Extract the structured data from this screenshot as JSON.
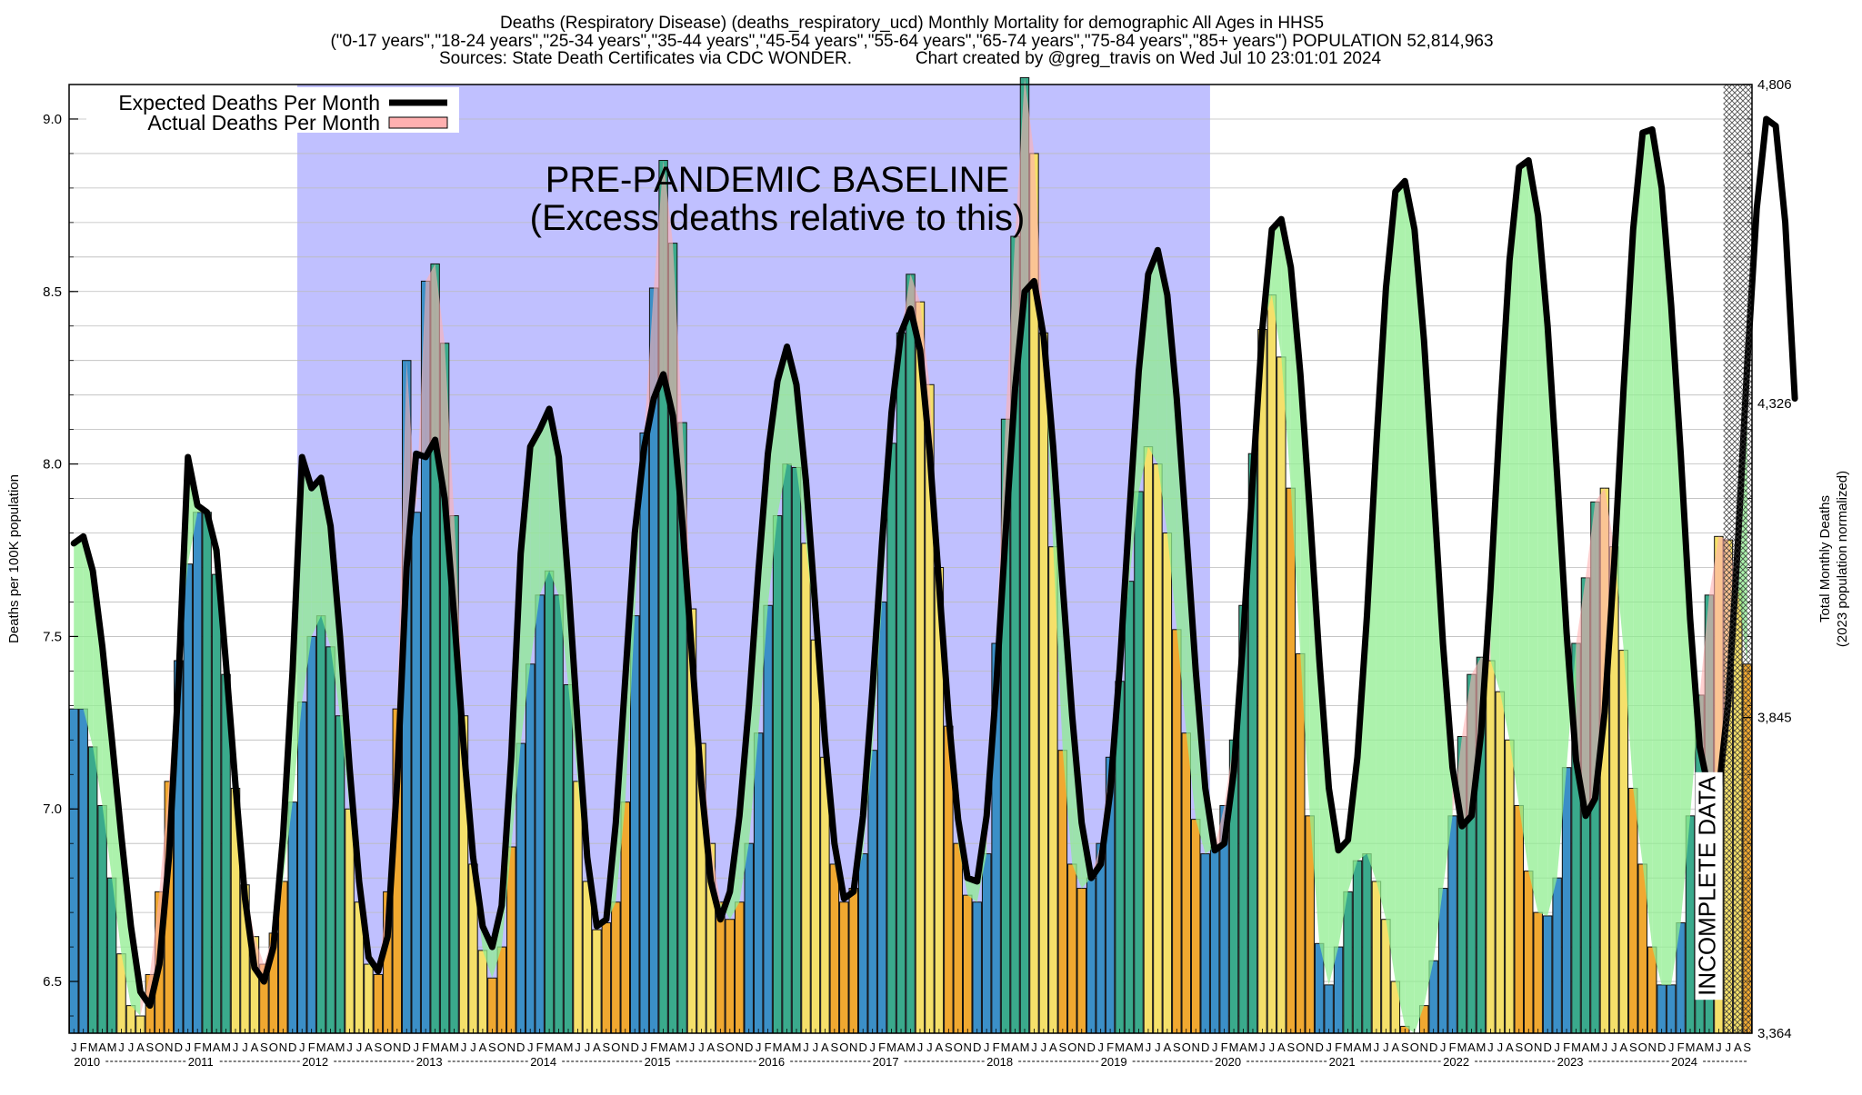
{
  "chart_data": {
    "type": "bar",
    "title_lines": [
      "Deaths (Respiratory Disease) (deaths_respiratory_ucd) Monthly Mortality for demographic All Ages in HHS5",
      "(\"0-17 years\",\"18-24 years\",\"25-34 years\",\"35-44 years\",\"45-54 years\",\"55-64 years\",\"65-74 years\",\"75-84 years\",\"85+ years\") POPULATION 52,814,963",
      "Sources: State Death Certificates via CDC WONDER.",
      "Chart created by @greg_travis on Wed Jul 10 23:01:01 2024"
    ],
    "ylabel": "Deaths per 100K population",
    "y2label_lines": [
      "Total Monthly Deaths",
      "(2023 population normalized)"
    ],
    "ylim": [
      6.35,
      9.1
    ],
    "yticks": [
      "6.5",
      "7.0",
      "7.5",
      "8.0",
      "8.5",
      "9.0"
    ],
    "y2ticks": [
      "3,364",
      "3,845",
      "4,326",
      "4,806"
    ],
    "start_year": 2010,
    "month_letters": [
      "J",
      "F",
      "M",
      "A",
      "M",
      "J",
      "J",
      "A",
      "S",
      "O",
      "N",
      "D"
    ],
    "years": [
      "2010",
      "2011",
      "2012",
      "2013",
      "2014",
      "2015",
      "2016",
      "2017",
      "2018",
      "2019",
      "2020",
      "2021",
      "2022",
      "2023",
      "2024"
    ],
    "legend": [
      "Expected Deaths Per Month",
      "Actual Deaths Per Month"
    ],
    "baseline_label_lines": [
      "PRE-PANDEMIC BASELINE",
      "(Excess deaths relative to this)"
    ],
    "baseline_period": [
      "2012-01",
      "2019-12"
    ],
    "incomplete_label": "INCOMPLETE DATA",
    "incomplete_months": 3,
    "colors": {
      "baseline_bg": "#c0c0ff",
      "expected_line": "#000000",
      "actual_fill": "#ffb0b0",
      "excess_fill": "#90ee90",
      "bar_winter": "#3b8fc7",
      "bar_spring": "#3aaa8c",
      "bar_summer": "#f5e06a",
      "bar_fall": "#f0a830"
    },
    "actual": [
      7.29,
      7.29,
      7.18,
      7.01,
      6.8,
      6.58,
      6.43,
      6.4,
      6.52,
      6.76,
      7.08,
      7.43,
      7.71,
      7.86,
      7.86,
      7.68,
      7.39,
      7.06,
      6.78,
      6.63,
      6.55,
      6.64,
      6.79,
      7.02,
      7.31,
      7.5,
      7.56,
      7.47,
      7.27,
      7.0,
      6.73,
      6.55,
      6.52,
      6.76,
      7.29,
      8.3,
      7.86,
      8.53,
      8.58,
      8.35,
      7.85,
      7.27,
      6.84,
      6.59,
      6.51,
      6.6,
      6.89,
      7.19,
      7.42,
      7.62,
      7.69,
      7.62,
      7.36,
      7.08,
      6.79,
      6.65,
      6.67,
      6.73,
      7.02,
      7.56,
      8.09,
      8.51,
      8.88,
      8.64,
      8.12,
      7.58,
      7.19,
      6.9,
      6.73,
      6.68,
      6.73,
      6.9,
      7.22,
      7.59,
      7.85,
      8.0,
      7.99,
      7.77,
      7.49,
      7.15,
      6.84,
      6.73,
      6.77,
      6.87,
      7.17,
      7.6,
      8.06,
      8.38,
      8.55,
      8.47,
      8.23,
      7.7,
      7.24,
      6.9,
      6.75,
      6.73,
      6.87,
      7.48,
      8.13,
      8.66,
      9.12,
      8.9,
      8.38,
      7.76,
      7.17,
      6.84,
      6.77,
      6.8,
      6.9,
      7.15,
      7.37,
      7.66,
      7.92,
      8.05,
      8.0,
      7.8,
      7.52,
      7.22,
      6.97,
      6.87,
      6.89,
      7.01,
      7.2,
      7.59,
      8.03,
      8.39,
      8.49,
      8.31,
      7.93,
      7.45,
      6.98,
      6.61,
      6.49,
      6.6,
      6.76,
      6.85,
      6.87,
      6.79,
      6.68,
      6.5,
      6.37,
      6.35,
      6.43,
      6.56,
      6.77,
      6.98,
      7.21,
      7.39,
      7.44,
      7.43,
      7.34,
      7.2,
      7.01,
      6.82,
      6.7,
      6.69,
      6.8,
      7.12,
      7.48,
      7.67,
      7.89,
      7.93,
      7.76,
      7.46,
      7.06,
      6.84,
      6.6,
      6.49,
      6.49,
      6.67,
      6.98,
      7.33,
      7.62,
      7.79,
      7.78,
      7.64,
      7.42
    ],
    "expected": [
      7.77,
      7.79,
      7.69,
      7.47,
      7.2,
      6.92,
      6.66,
      6.47,
      6.43,
      6.55,
      6.86,
      7.37,
      8.02,
      7.88,
      7.86,
      7.75,
      7.42,
      7.07,
      6.74,
      6.54,
      6.5,
      6.6,
      6.92,
      7.4,
      8.02,
      7.93,
      7.96,
      7.82,
      7.5,
      7.12,
      6.79,
      6.57,
      6.53,
      6.63,
      7.08,
      7.7,
      8.03,
      8.02,
      8.07,
      7.9,
      7.56,
      7.18,
      6.86,
      6.66,
      6.6,
      6.72,
      7.15,
      7.74,
      8.05,
      8.1,
      8.16,
      8.02,
      7.66,
      7.24,
      6.86,
      6.66,
      6.68,
      6.96,
      7.38,
      7.8,
      8.05,
      8.19,
      8.26,
      8.14,
      7.83,
      7.45,
      7.07,
      6.79,
      6.68,
      6.76,
      6.98,
      7.3,
      7.69,
      8.03,
      8.24,
      8.34,
      8.23,
      7.95,
      7.58,
      7.2,
      6.9,
      6.74,
      6.76,
      6.98,
      7.35,
      7.77,
      8.15,
      8.38,
      8.45,
      8.33,
      8.04,
      7.65,
      7.27,
      6.97,
      6.8,
      6.79,
      6.98,
      7.35,
      7.8,
      8.22,
      8.5,
      8.53,
      8.37,
      8.05,
      7.65,
      7.27,
      6.96,
      6.8,
      6.84,
      7.05,
      7.41,
      7.85,
      8.27,
      8.55,
      8.62,
      8.49,
      8.19,
      7.8,
      7.4,
      7.06,
      6.88,
      6.9,
      7.11,
      7.5,
      7.96,
      8.39,
      8.68,
      8.71,
      8.57,
      8.26,
      7.86,
      7.43,
      7.06,
      6.88,
      6.91,
      7.15,
      7.56,
      8.06,
      8.51,
      8.79,
      8.82,
      8.68,
      8.36,
      7.93,
      7.48,
      7.12,
      6.95,
      6.98,
      7.22,
      7.64,
      8.14,
      8.59,
      8.86,
      8.88,
      8.72,
      8.4,
      7.97,
      7.51,
      7.14,
      6.98,
      7.03,
      7.28,
      7.71,
      8.22,
      8.68,
      8.96,
      8.97,
      8.8,
      8.46,
      8.03,
      7.55,
      7.18,
      7.05,
      7.05,
      7.31,
      7.76,
      8.29,
      8.74,
      9.0,
      8.98,
      8.7,
      8.19
    ]
  }
}
